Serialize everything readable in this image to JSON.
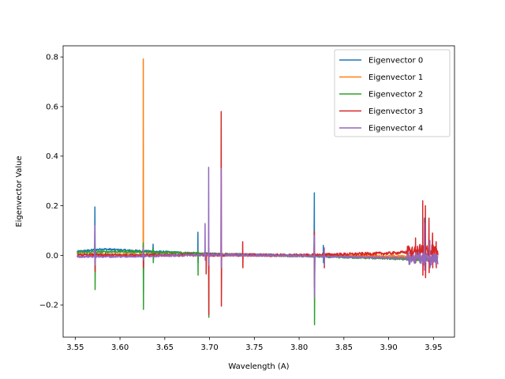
{
  "chart_data": {
    "type": "line",
    "title": "",
    "xlabel": "Wavelength (A)",
    "ylabel": "Eigenvector Value",
    "xlim": [
      3.5365,
      3.9735
    ],
    "ylim": [
      -0.33,
      0.845
    ],
    "xticks": [
      3.55,
      3.6,
      3.65,
      3.7,
      3.75,
      3.8,
      3.85,
      3.9,
      3.95
    ],
    "xtick_labels": [
      "3.55",
      "3.60",
      "3.65",
      "3.70",
      "3.75",
      "3.80",
      "3.85",
      "3.90",
      "3.95"
    ],
    "yticks": [
      -0.2,
      0.0,
      0.2,
      0.4,
      0.6,
      0.8
    ],
    "ytick_labels": [
      "−0.2",
      "0.0",
      "0.2",
      "0.4",
      "0.6",
      "0.8"
    ],
    "grid": false,
    "legend_position": "top-right",
    "series": [
      {
        "name": "Eigenvector 0",
        "color": "#1f77b4",
        "baseline": [
          [
            3.552,
            0.015
          ],
          [
            3.58,
            0.025
          ],
          [
            3.62,
            0.018
          ],
          [
            3.7,
            0.006
          ],
          [
            3.8,
            0.0
          ],
          [
            3.9,
            -0.008
          ],
          [
            3.955,
            -0.012
          ]
        ],
        "spikes": [
          [
            3.572,
            0.195,
            -0.04
          ],
          [
            3.626,
            0.04,
            -0.15
          ],
          [
            3.637,
            0.045,
            -0.02
          ],
          [
            3.687,
            0.093,
            -0.03
          ],
          [
            3.817,
            0.252,
            -0.12
          ],
          [
            3.827,
            0.04,
            -0.03
          ],
          [
            3.94,
            0.15,
            -0.02
          ]
        ]
      },
      {
        "name": "Eigenvector 1",
        "color": "#ff7f0e",
        "baseline": [
          [
            3.552,
            0.005
          ],
          [
            3.65,
            0.003
          ],
          [
            3.75,
            0.0
          ],
          [
            3.85,
            -0.002
          ],
          [
            3.955,
            -0.005
          ]
        ],
        "spikes": [
          [
            3.626,
            0.792,
            -0.05
          ],
          [
            3.713,
            0.05,
            -0.05
          ],
          [
            3.817,
            0.05,
            -0.05
          ]
        ]
      },
      {
        "name": "Eigenvector 2",
        "color": "#2ca02c",
        "baseline": [
          [
            3.552,
            0.012
          ],
          [
            3.6,
            0.015
          ],
          [
            3.65,
            0.012
          ],
          [
            3.7,
            0.005
          ],
          [
            3.8,
            -0.003
          ],
          [
            3.9,
            -0.013
          ],
          [
            3.955,
            -0.022
          ]
        ],
        "spikes": [
          [
            3.572,
            0.05,
            -0.138
          ],
          [
            3.626,
            0.05,
            -0.218
          ],
          [
            3.637,
            0.03,
            -0.03
          ],
          [
            3.687,
            0.02,
            -0.08
          ],
          [
            3.699,
            0.03,
            -0.25
          ],
          [
            3.817,
            0.02,
            -0.28
          ],
          [
            3.94,
            0.05,
            -0.04
          ]
        ]
      },
      {
        "name": "Eigenvector 3",
        "color": "#d62728",
        "baseline": [
          [
            3.552,
            0.0
          ],
          [
            3.6,
            0.0
          ],
          [
            3.7,
            0.002
          ],
          [
            3.8,
            0.0
          ],
          [
            3.9,
            0.008
          ],
          [
            3.955,
            0.02
          ]
        ],
        "spikes": [
          [
            3.572,
            0.02,
            -0.065
          ],
          [
            3.626,
            0.02,
            -0.05
          ],
          [
            3.696,
            0.01,
            -0.075
          ],
          [
            3.699,
            0.02,
            -0.24
          ],
          [
            3.713,
            0.58,
            -0.205
          ],
          [
            3.737,
            0.055,
            -0.05
          ],
          [
            3.817,
            0.095,
            -0.13
          ],
          [
            3.828,
            0.03,
            -0.05
          ],
          [
            3.93,
            0.07,
            -0.03
          ],
          [
            3.938,
            0.22,
            -0.08
          ],
          [
            3.941,
            0.2,
            -0.09
          ],
          [
            3.945,
            0.15,
            -0.07
          ],
          [
            3.949,
            0.09,
            -0.05
          ],
          [
            3.953,
            0.055,
            -0.05
          ]
        ]
      },
      {
        "name": "Eigenvector 4",
        "color": "#9467bd",
        "baseline": [
          [
            3.552,
            -0.005
          ],
          [
            3.6,
            -0.005
          ],
          [
            3.7,
            0.002
          ],
          [
            3.8,
            -0.002
          ],
          [
            3.9,
            -0.01
          ],
          [
            3.955,
            -0.015
          ]
        ],
        "spikes": [
          [
            3.572,
            0.12,
            -0.04
          ],
          [
            3.626,
            0.03,
            -0.02
          ],
          [
            3.695,
            0.128,
            -0.02
          ],
          [
            3.699,
            0.355,
            -0.04
          ],
          [
            3.713,
            0.35,
            -0.05
          ],
          [
            3.817,
            0.08,
            -0.17
          ],
          [
            3.828,
            0.03,
            -0.04
          ],
          [
            3.94,
            0.13,
            -0.06
          ],
          [
            3.946,
            0.06,
            -0.05
          ]
        ]
      }
    ]
  }
}
